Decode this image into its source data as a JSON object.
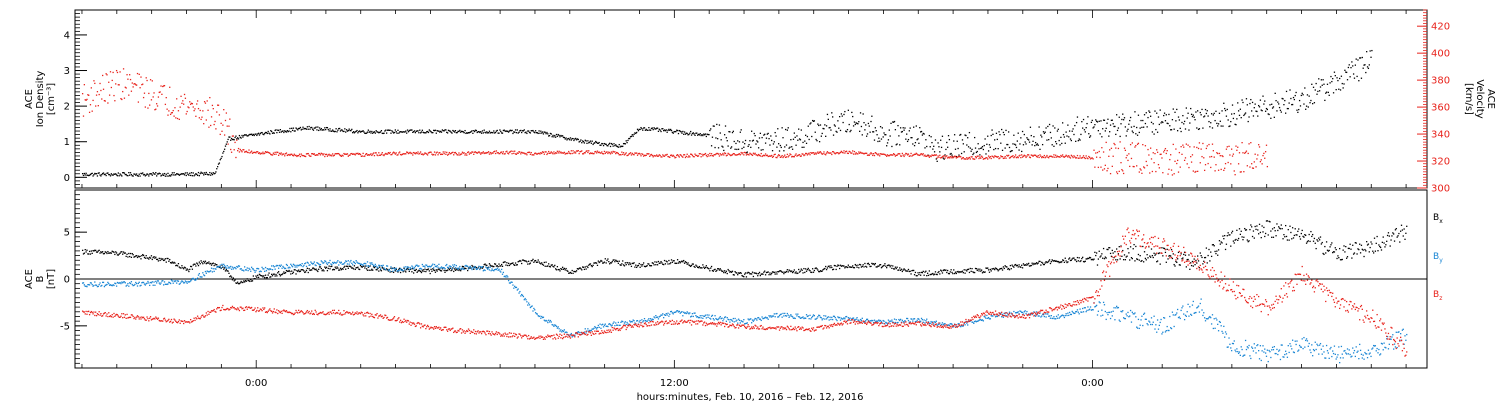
{
  "caption": "hours:minutes, Feb. 10, 2016 – Feb. 12, 2016",
  "colors": {
    "black": "#000000",
    "red": "#e8231c",
    "blue": "#1a86d4",
    "bg": "#ffffff"
  },
  "chart_data": [
    {
      "type": "scatter",
      "panel": "top",
      "left_axis": {
        "label_lines": [
          "ACE",
          "Ion Density",
          "[cm⁻³]"
        ],
        "ylim": [
          -0.3,
          4.7
        ],
        "ticks": [
          0,
          1,
          2,
          3,
          4
        ],
        "tick_labels": [
          "0",
          "1",
          "2",
          "3",
          "4"
        ]
      },
      "right_axis": {
        "label_lines": [
          "ACE",
          "Velocity",
          "[km/s]"
        ],
        "ylim": [
          300,
          432
        ],
        "ticks": [
          300,
          320,
          340,
          360,
          380,
          400,
          420
        ],
        "tick_labels": [
          "300",
          "320",
          "340",
          "360",
          "380",
          "400",
          "420"
        ]
      },
      "x_hours": [
        -5.2,
        33.6
      ],
      "x_ticks": [
        0,
        12,
        24
      ],
      "x_tick_labels": [
        "0:00",
        "12:00",
        "0:00"
      ],
      "series": [
        {
          "axis": "left",
          "color": "black",
          "points": [
            [
              -5.0,
              0.1
            ],
            [
              -3.5,
              0.1
            ],
            [
              -2.0,
              0.1
            ],
            [
              -1.2,
              0.12
            ],
            [
              -0.8,
              1.1
            ],
            [
              0.5,
              1.3
            ],
            [
              1.5,
              1.4
            ],
            [
              3.0,
              1.3
            ],
            [
              5.0,
              1.3
            ],
            [
              6.5,
              1.3
            ],
            [
              8.0,
              1.3
            ],
            [
              9.5,
              1.0
            ],
            [
              10.5,
              0.9
            ],
            [
              11.0,
              1.4
            ],
            [
              12.0,
              1.3
            ],
            [
              13.0,
              1.2
            ],
            [
              14.0,
              1.0
            ],
            [
              15.5,
              1.1
            ],
            [
              16.5,
              1.5
            ],
            [
              17.3,
              1.6
            ],
            [
              18.0,
              1.2
            ],
            [
              18.8,
              1.3
            ],
            [
              19.5,
              0.8
            ],
            [
              21.0,
              1.0
            ],
            [
              22.0,
              1.1
            ],
            [
              23.0,
              1.2
            ],
            [
              24.0,
              1.5
            ],
            [
              25.0,
              1.5
            ],
            [
              26.0,
              1.6
            ],
            [
              27.0,
              1.7
            ],
            [
              28.0,
              1.8
            ],
            [
              29.0,
              2.0
            ],
            [
              30.0,
              2.2
            ],
            [
              31.0,
              2.7
            ],
            [
              32.0,
              3.3
            ]
          ]
        },
        {
          "axis": "right",
          "color": "red",
          "points": [
            [
              -5.0,
              365
            ],
            [
              -4.5,
              372
            ],
            [
              -4.0,
              378
            ],
            [
              -3.5,
              375
            ],
            [
              -3.0,
              370
            ],
            [
              -2.5,
              365
            ],
            [
              -2.0,
              362
            ],
            [
              -1.5,
              358
            ],
            [
              -1.0,
              350
            ],
            [
              -0.5,
              328
            ],
            [
              0.0,
              327
            ],
            [
              1.0,
              325
            ],
            [
              2.0,
              325
            ],
            [
              3.0,
              325
            ],
            [
              4.0,
              326
            ],
            [
              5.0,
              326
            ],
            [
              6.0,
              326
            ],
            [
              7.0,
              327
            ],
            [
              8.0,
              326
            ],
            [
              9.0,
              327
            ],
            [
              10.0,
              327
            ],
            [
              11.0,
              325
            ],
            [
              12.0,
              324
            ],
            [
              13.0,
              325
            ],
            [
              14.0,
              326
            ],
            [
              15.0,
              324
            ],
            [
              16.0,
              326
            ],
            [
              17.0,
              327
            ],
            [
              18.0,
              325
            ],
            [
              19.0,
              325
            ],
            [
              20.0,
              323
            ],
            [
              21.0,
              323
            ],
            [
              22.0,
              324
            ],
            [
              23.0,
              324
            ],
            [
              24.0,
              323
            ],
            [
              25.0,
              323
            ],
            [
              26.0,
              322
            ],
            [
              27.0,
              322
            ],
            [
              28.0,
              322
            ],
            [
              29.0,
              323
            ]
          ]
        }
      ]
    },
    {
      "type": "scatter",
      "panel": "bottom",
      "left_axis": {
        "label_lines": [
          "ACE",
          "B",
          "[nT]"
        ],
        "ylim": [
          -9.5,
          9.5
        ],
        "ticks": [
          -5,
          0,
          5
        ],
        "tick_labels": [
          "-5",
          "0",
          "5"
        ]
      },
      "x_hours": [
        -5.2,
        33.6
      ],
      "x_ticks": [
        0,
        12,
        24
      ],
      "x_tick_labels": [
        "0:00",
        "12:00",
        "0:00"
      ],
      "zero_line": true,
      "legend": {
        "placement": "right",
        "entries": [
          {
            "label": "B",
            "sub": "x",
            "color": "black"
          },
          {
            "label": "B",
            "sub": "y",
            "color": "blue"
          },
          {
            "label": "B",
            "sub": "z",
            "color": "red"
          }
        ]
      },
      "series": [
        {
          "name": "Bx",
          "color": "black",
          "points": [
            [
              -5.0,
              3.0
            ],
            [
              -4.0,
              2.8
            ],
            [
              -3.0,
              2.3
            ],
            [
              -2.5,
              2.0
            ],
            [
              -2.0,
              1.0
            ],
            [
              -1.5,
              2.0
            ],
            [
              -1.0,
              1.3
            ],
            [
              -0.5,
              -0.5
            ],
            [
              0.0,
              0.3
            ],
            [
              1.0,
              0.8
            ],
            [
              2.0,
              1.2
            ],
            [
              3.0,
              1.3
            ],
            [
              4.0,
              1.0
            ],
            [
              5.0,
              0.9
            ],
            [
              6.0,
              1.2
            ],
            [
              7.0,
              1.6
            ],
            [
              8.0,
              2.0
            ],
            [
              9.0,
              0.8
            ],
            [
              10.0,
              2.0
            ],
            [
              11.0,
              1.5
            ],
            [
              12.0,
              2.0
            ],
            [
              13.0,
              1.2
            ],
            [
              14.0,
              0.5
            ],
            [
              15.0,
              0.8
            ],
            [
              16.0,
              1.0
            ],
            [
              17.0,
              1.5
            ],
            [
              18.0,
              1.5
            ],
            [
              19.0,
              0.6
            ],
            [
              20.0,
              0.9
            ],
            [
              21.0,
              1.0
            ],
            [
              22.0,
              1.5
            ],
            [
              23.0,
              2.0
            ],
            [
              24.0,
              2.2
            ],
            [
              25.0,
              3.0
            ],
            [
              26.0,
              2.5
            ],
            [
              27.0,
              1.8
            ],
            [
              28.0,
              4.5
            ],
            [
              29.0,
              5.5
            ],
            [
              30.0,
              4.8
            ],
            [
              31.0,
              2.8
            ],
            [
              32.0,
              3.5
            ],
            [
              33.0,
              5.2
            ]
          ]
        },
        {
          "name": "By",
          "color": "blue",
          "points": [
            [
              -5.0,
              -0.5
            ],
            [
              -4.0,
              -0.5
            ],
            [
              -3.0,
              -0.4
            ],
            [
              -2.0,
              -0.2
            ],
            [
              -1.0,
              1.5
            ],
            [
              0.0,
              1.0
            ],
            [
              1.0,
              1.5
            ],
            [
              2.0,
              1.8
            ],
            [
              3.0,
              1.8
            ],
            [
              4.0,
              1.0
            ],
            [
              5.0,
              1.5
            ],
            [
              6.0,
              1.3
            ],
            [
              7.0,
              1.0
            ],
            [
              8.0,
              -3.5
            ],
            [
              9.0,
              -6.0
            ],
            [
              10.0,
              -4.8
            ],
            [
              11.0,
              -4.5
            ],
            [
              12.0,
              -3.5
            ],
            [
              13.0,
              -4.0
            ],
            [
              14.0,
              -4.5
            ],
            [
              15.0,
              -3.8
            ],
            [
              16.0,
              -4.0
            ],
            [
              17.0,
              -4.2
            ],
            [
              18.0,
              -4.5
            ],
            [
              19.0,
              -4.3
            ],
            [
              20.0,
              -5.0
            ],
            [
              21.0,
              -4.0
            ],
            [
              22.0,
              -3.5
            ],
            [
              23.0,
              -4.0
            ],
            [
              24.0,
              -3.0
            ],
            [
              25.0,
              -4.0
            ],
            [
              26.0,
              -5.0
            ],
            [
              27.0,
              -2.5
            ],
            [
              28.0,
              -7.0
            ],
            [
              29.0,
              -8.0
            ],
            [
              30.0,
              -7.0
            ],
            [
              31.0,
              -8.0
            ],
            [
              32.0,
              -7.5
            ],
            [
              33.0,
              -6.0
            ]
          ]
        },
        {
          "name": "Bz",
          "color": "red",
          "points": [
            [
              -5.0,
              -3.5
            ],
            [
              -4.0,
              -3.8
            ],
            [
              -3.0,
              -4.2
            ],
            [
              -2.0,
              -4.5
            ],
            [
              -1.0,
              -3.0
            ],
            [
              0.0,
              -3.2
            ],
            [
              1.0,
              -3.5
            ],
            [
              2.0,
              -3.5
            ],
            [
              3.0,
              -3.6
            ],
            [
              4.0,
              -4.2
            ],
            [
              5.0,
              -5.2
            ],
            [
              6.0,
              -5.5
            ],
            [
              7.0,
              -5.8
            ],
            [
              8.0,
              -6.2
            ],
            [
              9.0,
              -6.0
            ],
            [
              10.0,
              -5.5
            ],
            [
              11.0,
              -4.8
            ],
            [
              12.0,
              -4.5
            ],
            [
              13.0,
              -4.7
            ],
            [
              14.0,
              -5.0
            ],
            [
              15.0,
              -5.2
            ],
            [
              16.0,
              -5.3
            ],
            [
              17.0,
              -4.5
            ],
            [
              18.0,
              -4.8
            ],
            [
              19.0,
              -4.7
            ],
            [
              20.0,
              -5.0
            ],
            [
              21.0,
              -3.5
            ],
            [
              22.0,
              -4.0
            ],
            [
              23.0,
              -3.0
            ],
            [
              24.0,
              -2.0
            ],
            [
              25.0,
              4.8
            ],
            [
              26.0,
              3.5
            ],
            [
              27.0,
              2.0
            ],
            [
              28.0,
              -1.0
            ],
            [
              29.0,
              -3.0
            ],
            [
              30.0,
              0.5
            ],
            [
              31.0,
              -2.5
            ],
            [
              32.0,
              -4.0
            ],
            [
              33.0,
              -7.5
            ]
          ]
        }
      ]
    }
  ]
}
